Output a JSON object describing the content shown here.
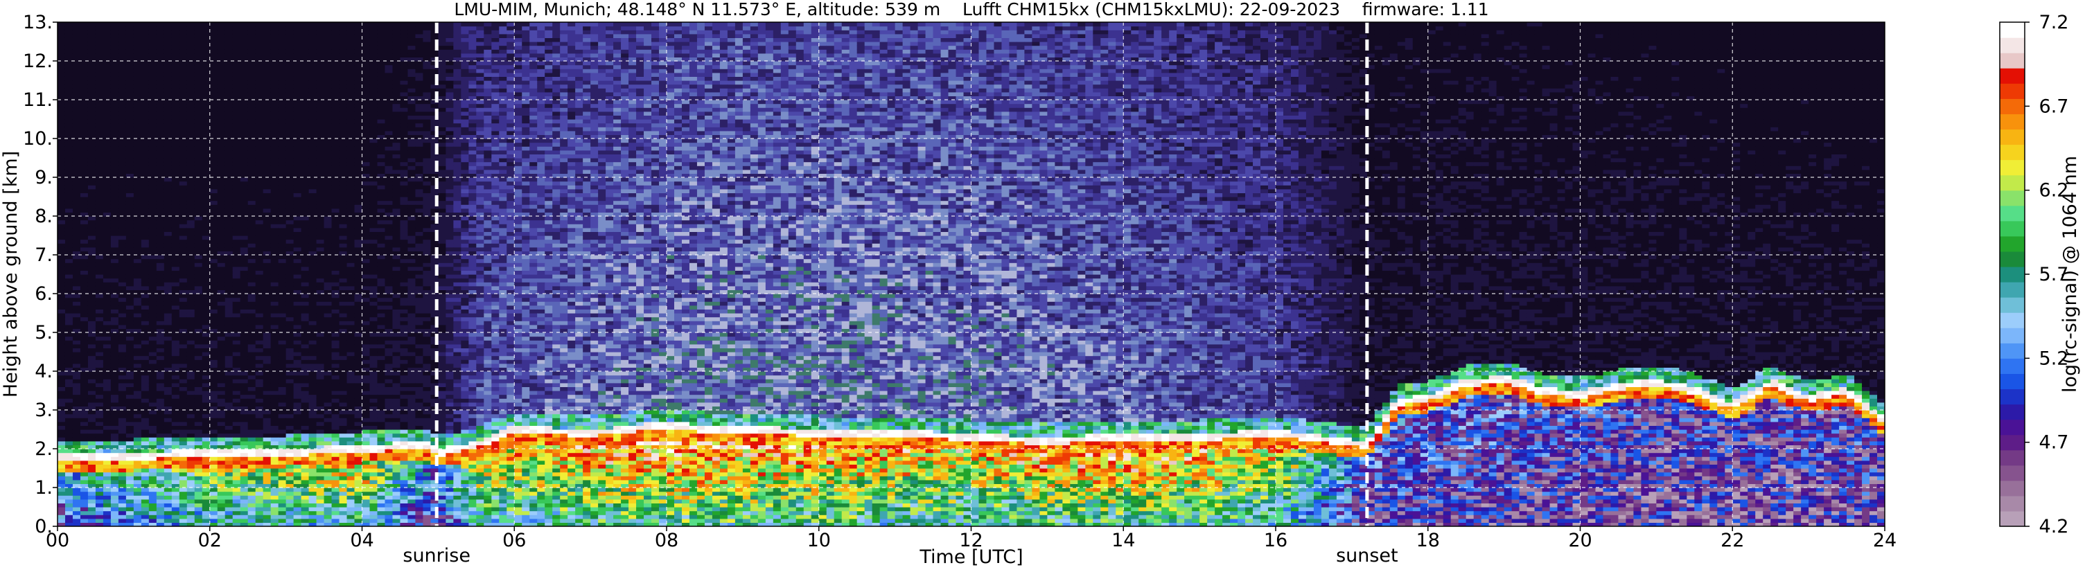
{
  "chart_data": {
    "type": "heatmap",
    "title": "LMU-MIM, Munich; 48.148° N 11.573° E, altitude: 539 m    Lufft CHM15kx (CHM15kxLMU): 22-09-2023    firmware: 1.11",
    "xlabel": "Time [UTC]",
    "ylabel": "Height above ground [km]",
    "xlim": [
      0,
      24
    ],
    "ylim": [
      0,
      13
    ],
    "x_ticks": [
      "00",
      "02",
      "04",
      "06",
      "08",
      "10",
      "12",
      "14",
      "16",
      "18",
      "20",
      "22",
      "24"
    ],
    "y_ticks": [
      "0.",
      "1.",
      "2.",
      "3.",
      "4.",
      "5.",
      "6.",
      "7.",
      "8.",
      "9.",
      "10.",
      "11.",
      "12.",
      "13."
    ],
    "grid": true,
    "annotations": [
      {
        "label": "sunrise",
        "x": 4.98
      },
      {
        "label": "sunset",
        "x": 17.2
      }
    ],
    "colorbar": {
      "label": "log(rc-signal) @ 1064 nm",
      "range": [
        4.2,
        7.2
      ],
      "ticks": [
        "7.2",
        "6.7",
        "6.2",
        "5.7",
        "5.2",
        "4.7",
        "4.2"
      ],
      "colors": [
        "#b8a0b8",
        "#a889a8",
        "#98709a",
        "#86538e",
        "#743a86",
        "#5e1d88",
        "#4a1296",
        "#2c1aa8",
        "#1c33c8",
        "#1a55e6",
        "#2f74f2",
        "#4f95f6",
        "#7cb6fa",
        "#9ccdfb",
        "#6fbfd8",
        "#3fa6b0",
        "#1c8f7d",
        "#1a8a3a",
        "#22a52c",
        "#38c85a",
        "#56de88",
        "#8ae26a",
        "#c2ea4a",
        "#f0ee36",
        "#f6d31e",
        "#f8b412",
        "#f8920c",
        "#f46a08",
        "#ee3a04",
        "#e41004",
        "#e8c8c8",
        "#f4e6e6",
        "#ffffff"
      ]
    },
    "background_profile": {
      "x": [
        0,
        2,
        4,
        4.98,
        5.5,
        8,
        10,
        12,
        14,
        16,
        17.2,
        24
      ],
      "noise_level": [
        0.1,
        0.1,
        0.1,
        0.15,
        0.5,
        0.7,
        0.72,
        0.7,
        0.6,
        0.45,
        0.12,
        0.1
      ]
    },
    "layer_top_km": {
      "x": [
        0,
        1,
        2,
        3,
        4,
        4.9,
        5.0,
        5.5,
        6,
        7,
        8,
        8.5,
        9,
        10,
        11,
        12,
        13,
        14,
        15,
        16,
        17.2,
        17.6,
        18,
        18.5,
        19,
        19.5,
        20,
        20.5,
        21,
        21.5,
        22,
        22.5,
        23,
        23.5,
        24
      ],
      "y": [
        1.9,
        1.9,
        2.0,
        2.0,
        2.1,
        2.2,
        2.0,
        2.2,
        2.6,
        2.5,
        2.7,
        2.6,
        2.6,
        2.5,
        2.5,
        2.4,
        2.3,
        2.4,
        2.4,
        2.5,
        2.2,
        3.3,
        3.4,
        3.8,
        3.9,
        3.6,
        3.5,
        3.7,
        3.8,
        3.6,
        3.2,
        3.8,
        3.4,
        3.6,
        2.8
      ]
    },
    "signal_core": {
      "x": [
        0,
        2,
        4,
        4.98,
        5.5,
        8,
        10,
        12,
        14,
        16,
        17.2,
        18,
        20,
        22,
        24
      ],
      "value": [
        0.45,
        0.72,
        0.85,
        0.35,
        0.8,
        0.95,
        0.9,
        0.85,
        0.95,
        0.82,
        0.3,
        0.3,
        0.25,
        0.2,
        0.25
      ]
    }
  }
}
